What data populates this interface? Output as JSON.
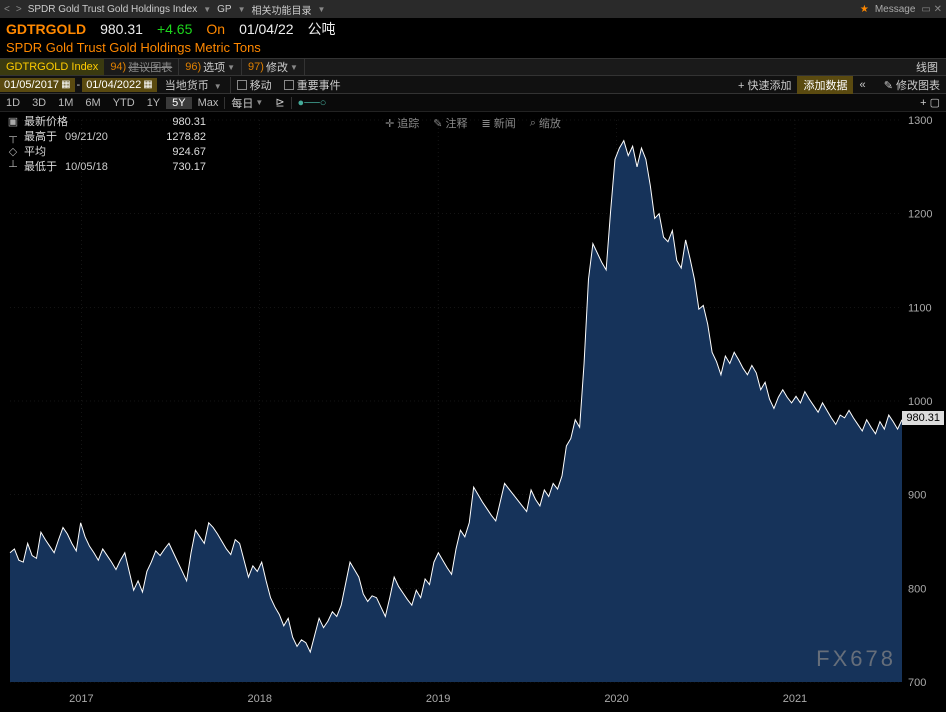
{
  "topbar": {
    "crumb1": "SPDR Gold Trust Gold Holdings Index",
    "crumb2": "GP",
    "crumb3": "相关功能目录",
    "message": "Message"
  },
  "ticker": {
    "symbol": "GDTRGOLD",
    "price": "980.31",
    "change": "+4.65",
    "on_label": "On",
    "date": "01/04/22",
    "unit": "公吨"
  },
  "subtitle": "SPDR Gold Trust Gold Holdings Metric Tons",
  "menubar": {
    "index": "GDTRGOLD Index",
    "suggest_hot": "94)",
    "suggest_lbl": "建议图表",
    "options_hot": "96)",
    "options_lbl": "选项",
    "edit_hot": "97)",
    "edit_lbl": "修改",
    "right": "线图"
  },
  "datebar": {
    "from": "01/05/2017",
    "to": "01/04/2022",
    "local_ccy": "当地货币",
    "move": "移动",
    "events": "重要事件",
    "quick_add": "+ 快速添加",
    "add_data": "添加数据",
    "edit_chart": "修改图表"
  },
  "rangebar": {
    "items": [
      "1D",
      "3D",
      "1M",
      "6M",
      "YTD",
      "1Y",
      "5Y",
      "Max"
    ],
    "active_index": 6,
    "freq": "每日",
    "tools": {
      "track": "追踪",
      "annotate": "注释",
      "news": "新闻",
      "zoom": "缩放"
    }
  },
  "stats": {
    "last_lbl": "最新价格",
    "last_val": "980.31",
    "high_lbl": "最高于",
    "high_date": "09/21/20",
    "high_val": "1278.82",
    "avg_lbl": "平均",
    "avg_val": "924.67",
    "low_lbl": "最低于",
    "low_date": "10/05/18",
    "low_val": "730.17"
  },
  "watermark": "FX678",
  "chart": {
    "type": "area",
    "background": "#000000",
    "line_color": "#ffffff",
    "fill_color": "#16335a",
    "grid_color": "#2a2a2a",
    "axis_color": "#aaaaaa",
    "y_min": 700,
    "y_max": 1300,
    "y_ticks": [
      700,
      800,
      900,
      1000,
      1100,
      1200,
      1300
    ],
    "current_value": 980.31,
    "x_labels": [
      "2017",
      "2018",
      "2019",
      "2020",
      "2021"
    ],
    "x_positions": [
      0.08,
      0.28,
      0.48,
      0.68,
      0.88
    ],
    "series": [
      838,
      842,
      830,
      828,
      848,
      835,
      832,
      860,
      852,
      845,
      838,
      852,
      865,
      858,
      848,
      840,
      870,
      855,
      845,
      838,
      830,
      842,
      835,
      828,
      820,
      830,
      838,
      818,
      798,
      808,
      796,
      818,
      828,
      840,
      835,
      842,
      848,
      838,
      828,
      818,
      808,
      838,
      862,
      855,
      848,
      870,
      865,
      858,
      850,
      842,
      836,
      852,
      848,
      830,
      812,
      824,
      818,
      828,
      808,
      790,
      780,
      772,
      760,
      768,
      748,
      738,
      745,
      742,
      732,
      750,
      768,
      758,
      765,
      775,
      770,
      782,
      805,
      828,
      820,
      812,
      794,
      786,
      792,
      790,
      780,
      770,
      790,
      812,
      802,
      795,
      788,
      782,
      798,
      790,
      810,
      804,
      828,
      838,
      830,
      822,
      815,
      842,
      862,
      855,
      870,
      908,
      900,
      892,
      885,
      878,
      872,
      892,
      912,
      906,
      900,
      894,
      888,
      882,
      905,
      895,
      888,
      905,
      898,
      912,
      906,
      920,
      952,
      960,
      980,
      972,
      1040,
      1130,
      1168,
      1158,
      1148,
      1140,
      1202,
      1258,
      1270,
      1278,
      1262,
      1272,
      1250,
      1270,
      1258,
      1230,
      1195,
      1200,
      1175,
      1170,
      1182,
      1150,
      1142,
      1172,
      1152,
      1130,
      1098,
      1102,
      1082,
      1052,
      1042,
      1028,
      1048,
      1040,
      1052,
      1044,
      1035,
      1028,
      1038,
      1030,
      1012,
      1020,
      1002,
      992,
      1004,
      1012,
      1004,
      998,
      1005,
      998,
      1010,
      1002,
      995,
      988,
      998,
      990,
      982,
      975,
      985,
      982,
      990,
      982,
      975,
      968,
      980,
      972,
      965,
      978,
      970,
      985,
      978,
      970,
      980
    ]
  }
}
